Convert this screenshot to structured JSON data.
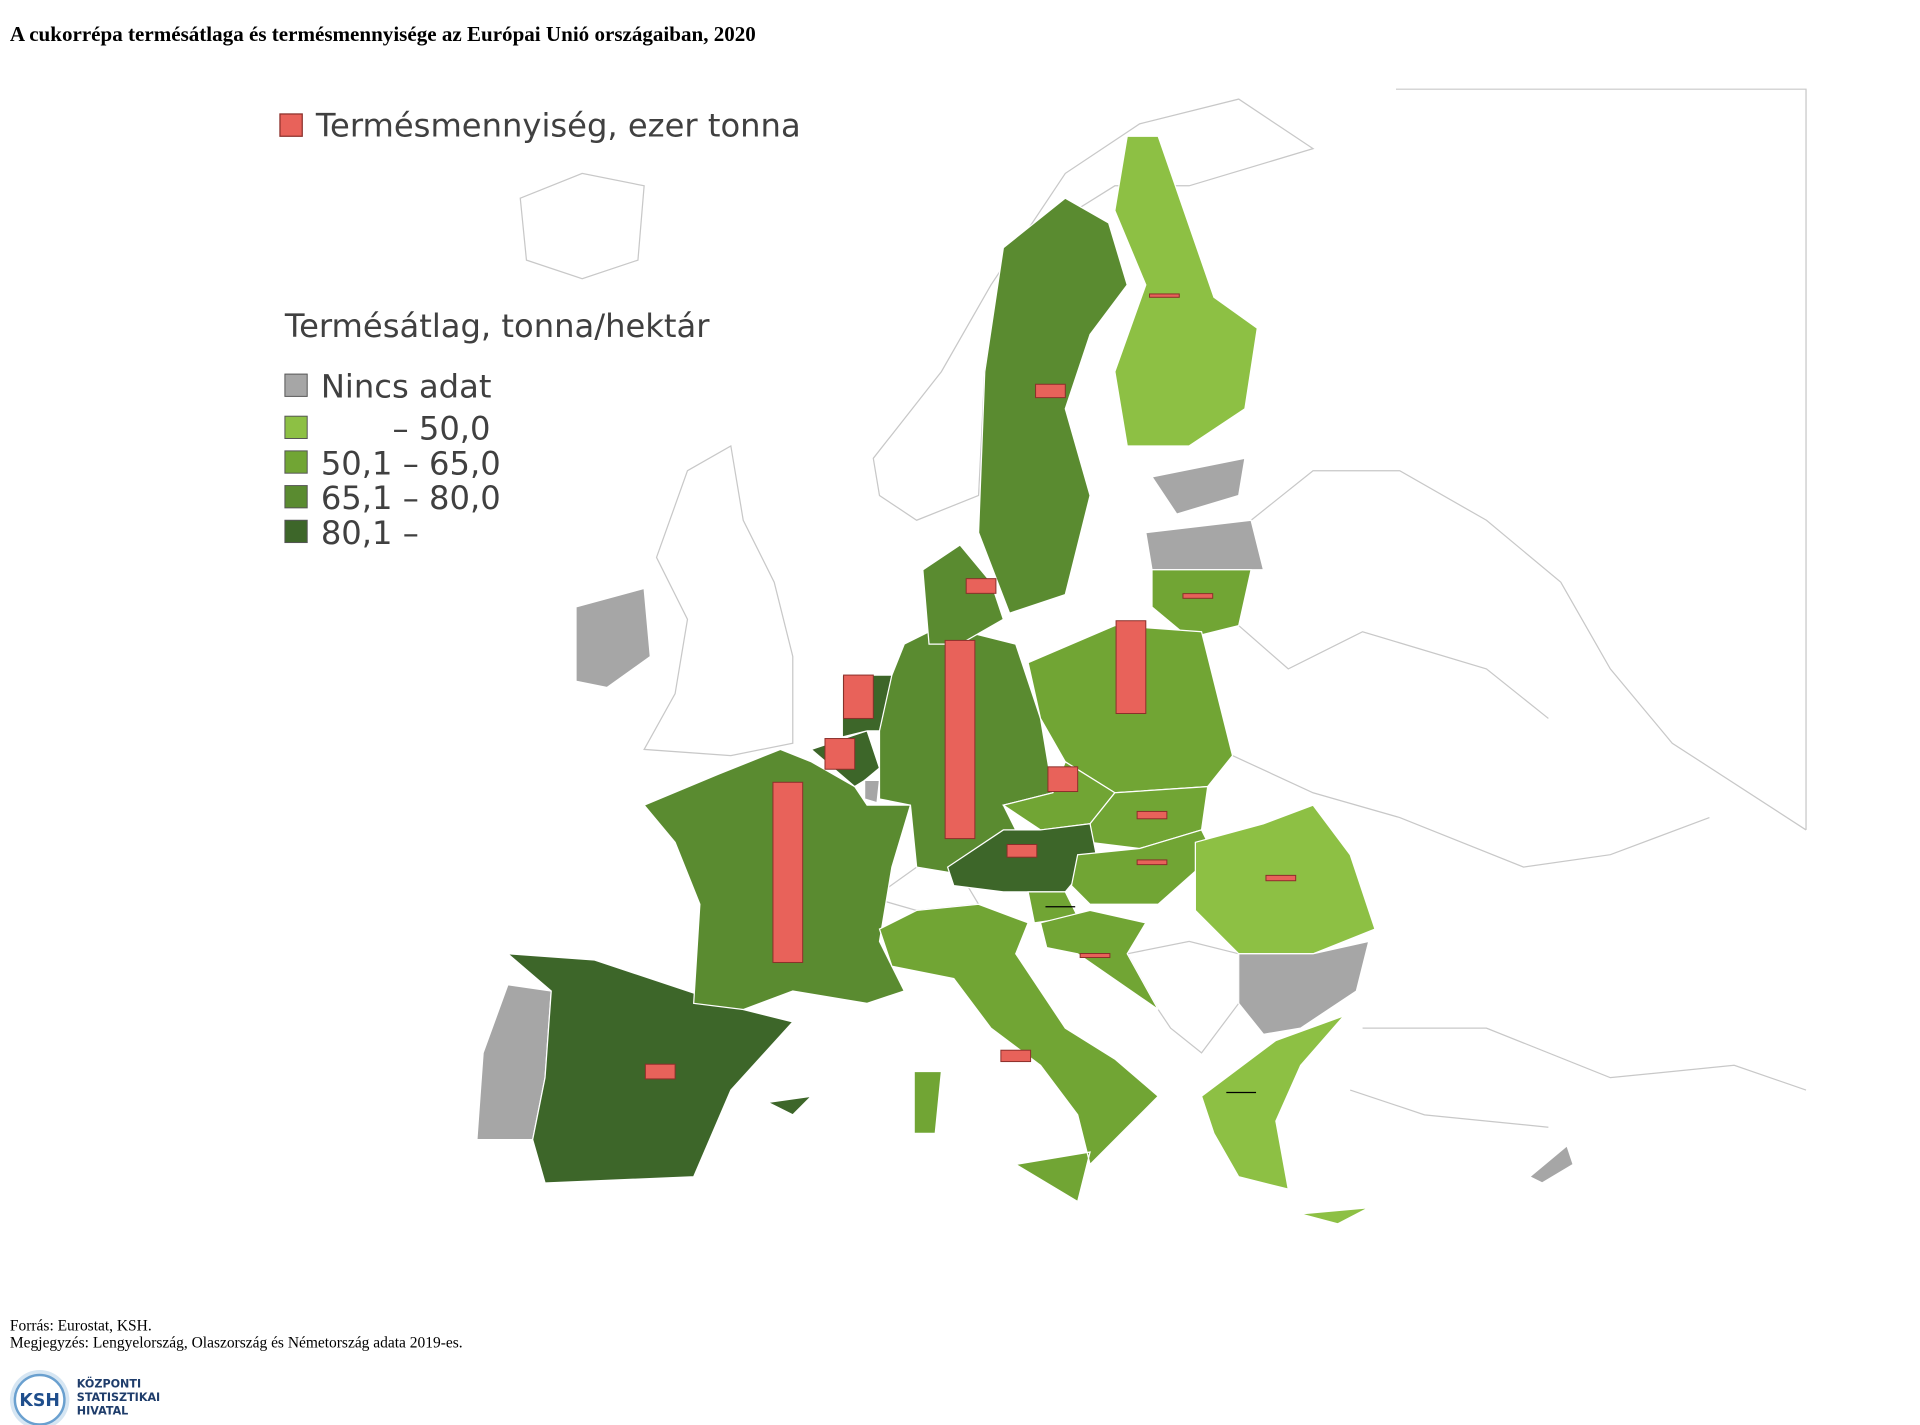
{
  "title": "A cukorrépa termésátlaga és termésmennyisége az Európai Unió országaiban, 2020",
  "legend": {
    "bar_label": "Termésmennyiség, ezer tonna",
    "bar_color": "#e8625a",
    "class_title": "Termésátlag, tonna/hektár",
    "classes": [
      {
        "label": "Nincs adat",
        "color": "#a6a6a6"
      },
      {
        "label": "– 50,0",
        "color": "#8dc044"
      },
      {
        "label": "50,1 – 65,0",
        "color": "#71a534"
      },
      {
        "label": "65,1 – 80,0",
        "color": "#5a8b30"
      },
      {
        "label": "80,1 –",
        "color": "#3d6629"
      }
    ]
  },
  "countries": [
    {
      "class": 0
    },
    {
      "class": 0
    },
    {
      "class": 4,
      "value": 2200
    },
    {
      "class": 3,
      "value": 27000
    },
    {
      "class": 4,
      "value": 4600
    },
    {
      "class": 4,
      "value": 6500
    },
    {
      "class": 0
    },
    {
      "class": 3,
      "value": 29700
    },
    {
      "class": 3,
      "value": 2200
    },
    {
      "class": 3,
      "value": 2000
    },
    {
      "class": 1,
      "value": 500
    },
    {
      "class": 0
    },
    {
      "class": 0
    },
    {
      "class": 2,
      "value": 700
    },
    {
      "class": 2,
      "value": 13900
    },
    {
      "class": 2,
      "value": 3700
    },
    {
      "class": 2,
      "value": 1100
    },
    {
      "class": 4,
      "value": 1900
    },
    {
      "class": 2,
      "value": 700
    },
    {
      "class": 2,
      "value": 0
    },
    {
      "class": 2,
      "value": 600
    },
    {
      "class": 1,
      "value": 800
    },
    {
      "class": 0
    },
    {
      "class": 1,
      "value": 0
    },
    {
      "class": 2,
      "value": 1700
    },
    {
      "class": 0
    }
  ],
  "source": "Forrás: Eurostat, KSH.",
  "note": "Megjegyzés: Lengyelország, Olaszország és Németország adata 2019-es.",
  "logo": {
    "abbr": "KSH",
    "lines": [
      "KÖZPONTI",
      "STATISZTIKAI",
      "HIVATAL"
    ]
  }
}
